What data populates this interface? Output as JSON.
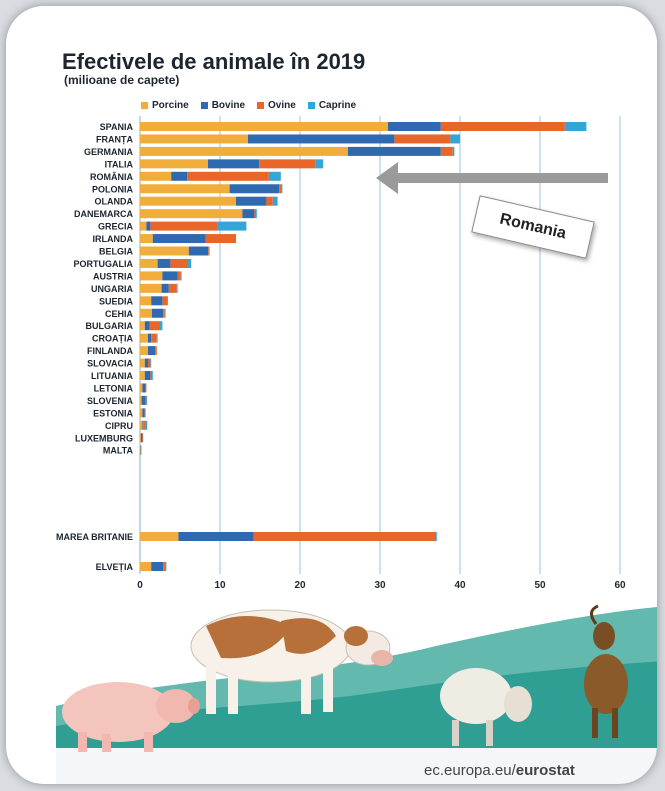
{
  "title": "Efectivele de animale în 2019",
  "subtitle": "(milioane de capete)",
  "source_prefix": "ec.europa.eu/",
  "source_bold": "eurostat",
  "annotation_label": "Romania",
  "colors": {
    "porcine": "#f1ad3b",
    "bovine": "#2f6ab0",
    "ovine": "#e9662a",
    "caprine": "#33a5d9",
    "grid": "#9ac6dc",
    "background": "#ffffff"
  },
  "chart_data": {
    "type": "bar",
    "orientation": "horizontal",
    "stacked": true,
    "title": "Efectivele de animale în 2019",
    "subtitle": "(milioane de capete)",
    "legend_position": "top",
    "xlim": [
      0,
      60
    ],
    "xticks": [
      0,
      10,
      20,
      30,
      40,
      50,
      60
    ],
    "categories": [
      "SPANIA",
      "FRANȚA",
      "GERMANIA",
      "ITALIA",
      "ROMÂNIA",
      "POLONIA",
      "OLANDA",
      "DANEMARCA",
      "GRECIA",
      "IRLANDA",
      "BELGIA",
      "PORTUGALIA",
      "AUSTRIA",
      "UNGARIA",
      "SUEDIA",
      "CEHIA",
      "BULGARIA",
      "CROAȚIA",
      "FINLANDA",
      "SLOVACIA",
      "LITUANIA",
      "LETONIA",
      "SLOVENIA",
      "ESTONIA",
      "CIPRU",
      "LUXEMBURG",
      "MALTA",
      "MAREA BRITANIE",
      "ELVEȚIA"
    ],
    "series": [
      {
        "name": "Porcine",
        "values": [
          31.0,
          13.5,
          26.0,
          8.5,
          3.9,
          11.2,
          12.0,
          12.8,
          0.8,
          1.6,
          6.1,
          2.2,
          2.8,
          2.7,
          1.4,
          1.5,
          0.6,
          1.0,
          1.0,
          0.6,
          0.6,
          0.3,
          0.2,
          0.3,
          0.3,
          0.1,
          0.05,
          4.8,
          1.4
        ]
      },
      {
        "name": "Bovine",
        "values": [
          6.6,
          18.3,
          11.6,
          6.4,
          2.0,
          6.2,
          3.8,
          1.5,
          0.5,
          6.6,
          2.4,
          1.6,
          1.9,
          0.9,
          1.4,
          1.4,
          0.6,
          0.4,
          0.9,
          0.4,
          0.7,
          0.4,
          0.5,
          0.3,
          0.1,
          0.2,
          0.02,
          9.4,
          1.5
        ]
      },
      {
        "name": "Ovine",
        "values": [
          15.5,
          7.0,
          1.5,
          7.0,
          10.2,
          0.3,
          0.8,
          0.2,
          8.4,
          3.8,
          0.1,
          2.2,
          0.4,
          1.0,
          0.6,
          0.2,
          1.3,
          0.7,
          0.2,
          0.3,
          0.2,
          0.1,
          0.1,
          0.1,
          0.3,
          0.01,
          0.01,
          22.8,
          0.3
        ]
      },
      {
        "name": "Caprine",
        "values": [
          2.7,
          1.2,
          0.2,
          1.0,
          1.5,
          0.1,
          0.6,
          0.05,
          3.6,
          0.0,
          0.05,
          0.4,
          0.1,
          0.1,
          0.05,
          0.05,
          0.3,
          0.1,
          0.0,
          0.05,
          0.05,
          0.0,
          0.03,
          0.0,
          0.2,
          0.0,
          0.01,
          0.1,
          0.1
        ]
      }
    ]
  }
}
